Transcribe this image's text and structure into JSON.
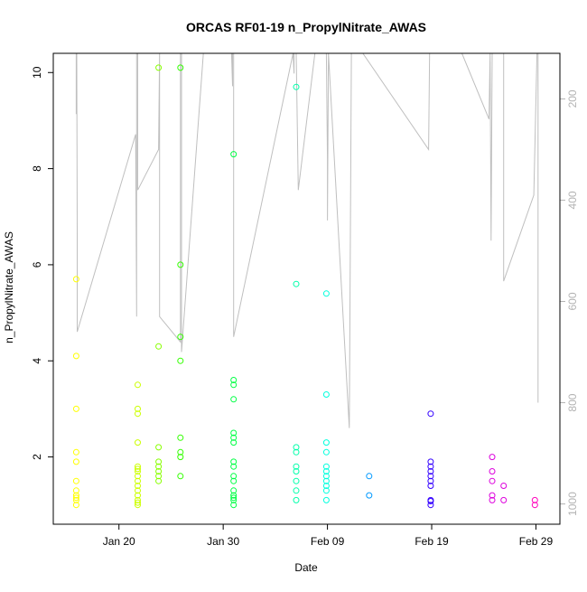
{
  "chart_data": {
    "type": "scatter",
    "title": "ORCAS RF01-19 n_PropylNitrate_AWAS",
    "xlabel": "Date",
    "ylabel": "n_PropylNitrate_AWAS",
    "ylim": [
      0.6,
      10.4
    ],
    "xlim_day": [
      13.7,
      62.3
    ],
    "y_ticks": [
      2,
      4,
      6,
      8,
      10
    ],
    "x_ticks": [
      {
        "day": 20,
        "label": "Jan 20"
      },
      {
        "day": 30,
        "label": "Jan 30"
      },
      {
        "day": 40,
        "label": "Feb 09"
      },
      {
        "day": 50,
        "label": "Feb 19"
      },
      {
        "day": 60,
        "label": "Feb 29"
      }
    ],
    "right_axis": {
      "range": [
        1040,
        110
      ],
      "ticks": [
        200,
        400,
        600,
        800,
        1000
      ],
      "color": "#b3b3b3"
    },
    "grid": false,
    "series": [
      {
        "color": "#ffff00",
        "points": [
          [
            15.9,
            5.7
          ],
          [
            15.9,
            4.1
          ],
          [
            15.9,
            3.0
          ],
          [
            15.9,
            2.1
          ],
          [
            15.9,
            1.9
          ],
          [
            15.9,
            1.5
          ],
          [
            15.9,
            1.3
          ],
          [
            15.9,
            1.2
          ],
          [
            15.9,
            1.15
          ],
          [
            15.9,
            1.1
          ],
          [
            15.9,
            1.0
          ]
        ]
      },
      {
        "color": "#ccff00",
        "points": [
          [
            21.8,
            3.5
          ],
          [
            21.8,
            3.0
          ],
          [
            21.8,
            2.9
          ],
          [
            21.8,
            2.3
          ],
          [
            21.8,
            1.8
          ],
          [
            21.8,
            1.75
          ],
          [
            21.8,
            1.7
          ],
          [
            21.8,
            1.6
          ],
          [
            21.8,
            1.5
          ],
          [
            21.8,
            1.4
          ],
          [
            21.8,
            1.3
          ],
          [
            21.8,
            1.2
          ],
          [
            21.8,
            1.1
          ],
          [
            21.8,
            1.05
          ],
          [
            21.8,
            1.0
          ]
        ]
      },
      {
        "color": "#88ff00",
        "points": [
          [
            23.8,
            10.1
          ],
          [
            23.8,
            4.3
          ],
          [
            23.8,
            2.2
          ],
          [
            23.8,
            1.9
          ],
          [
            23.8,
            1.8
          ],
          [
            23.8,
            1.7
          ],
          [
            23.8,
            1.6
          ],
          [
            23.8,
            1.5
          ]
        ]
      },
      {
        "color": "#33ff00",
        "points": [
          [
            25.9,
            10.1
          ],
          [
            25.9,
            6.0
          ],
          [
            25.9,
            4.5
          ],
          [
            25.9,
            4.0
          ],
          [
            25.9,
            2.4
          ],
          [
            25.9,
            2.1
          ],
          [
            25.9,
            2.0
          ],
          [
            25.9,
            1.6
          ]
        ]
      },
      {
        "color": "#00ff44",
        "points": [
          [
            31.0,
            8.3
          ],
          [
            31.0,
            3.6
          ],
          [
            31.0,
            3.5
          ],
          [
            31.0,
            3.2
          ],
          [
            31.0,
            2.5
          ],
          [
            31.0,
            2.4
          ],
          [
            31.0,
            2.3
          ],
          [
            31.0,
            1.9
          ],
          [
            31.0,
            1.8
          ],
          [
            31.0,
            1.6
          ],
          [
            31.0,
            1.5
          ],
          [
            31.0,
            1.3
          ],
          [
            31.0,
            1.2
          ],
          [
            31.0,
            1.15
          ],
          [
            31.0,
            1.1
          ],
          [
            31.0,
            1.0
          ]
        ]
      },
      {
        "color": "#00ffaa",
        "points": [
          [
            37.0,
            9.7
          ],
          [
            37.0,
            5.6
          ],
          [
            37.0,
            2.2
          ],
          [
            37.0,
            2.1
          ],
          [
            37.0,
            1.8
          ],
          [
            37.0,
            1.7
          ],
          [
            37.0,
            1.5
          ],
          [
            37.0,
            1.3
          ],
          [
            37.0,
            1.1
          ]
        ]
      },
      {
        "color": "#00ffdd",
        "points": [
          [
            39.9,
            5.4
          ],
          [
            39.9,
            3.3
          ],
          [
            39.9,
            2.3
          ],
          [
            39.9,
            2.1
          ],
          [
            39.9,
            1.8
          ],
          [
            39.9,
            1.7
          ],
          [
            39.9,
            1.6
          ],
          [
            39.9,
            1.5
          ],
          [
            39.9,
            1.4
          ],
          [
            39.9,
            1.3
          ],
          [
            39.9,
            1.1
          ]
        ]
      },
      {
        "color": "#0099ff",
        "points": [
          [
            44.0,
            1.6
          ],
          [
            44.0,
            1.2
          ]
        ]
      },
      {
        "color": "#3300ff",
        "points": [
          [
            49.9,
            2.9
          ],
          [
            49.9,
            1.9
          ],
          [
            49.9,
            1.8
          ],
          [
            49.9,
            1.7
          ],
          [
            49.9,
            1.6
          ],
          [
            49.9,
            1.5
          ],
          [
            49.9,
            1.4
          ],
          [
            49.9,
            1.1
          ],
          [
            49.9,
            1.08
          ],
          [
            49.9,
            1.0
          ]
        ]
      },
      {
        "color": "#dd00dd",
        "points": [
          [
            55.8,
            2.0
          ],
          [
            55.8,
            1.7
          ],
          [
            55.8,
            1.5
          ],
          [
            55.8,
            1.2
          ],
          [
            55.8,
            1.1
          ],
          [
            56.9,
            1.4
          ],
          [
            56.9,
            1.1
          ]
        ]
      },
      {
        "color": "#ff00bb",
        "points": [
          [
            59.9,
            1.1
          ],
          [
            59.9,
            1.0
          ]
        ]
      }
    ],
    "pressure_trace": {
      "color": "#bfbfbf",
      "points": [
        [
          15.9,
          110
        ],
        [
          15.9,
          230
        ],
        [
          15.95,
          110
        ],
        [
          16.0,
          470
        ],
        [
          16.0,
          660
        ],
        [
          21.6,
          270
        ],
        [
          21.7,
          630
        ],
        [
          21.7,
          110
        ],
        [
          21.8,
          110
        ],
        [
          21.8,
          380
        ],
        [
          23.8,
          300
        ],
        [
          23.9,
          110
        ],
        [
          23.9,
          630
        ],
        [
          25.9,
          680
        ],
        [
          25.9,
          110
        ],
        [
          26.0,
          110
        ],
        [
          26.0,
          700
        ],
        [
          28.1,
          110
        ],
        [
          30.8,
          110
        ],
        [
          30.9,
          175
        ],
        [
          30.9,
          110
        ],
        [
          31.0,
          110
        ],
        [
          31.0,
          670
        ],
        [
          36.7,
          110
        ],
        [
          36.8,
          150
        ],
        [
          36.8,
          110
        ],
        [
          37.0,
          110
        ],
        [
          37.2,
          380
        ],
        [
          38.8,
          110
        ],
        [
          39.8,
          110
        ],
        [
          39.9,
          100
        ],
        [
          40.0,
          320
        ],
        [
          40.0,
          440
        ],
        [
          40.1,
          110
        ],
        [
          42.1,
          850
        ],
        [
          42.3,
          110
        ],
        [
          43.4,
          110
        ],
        [
          49.7,
          300
        ],
        [
          49.8,
          110
        ],
        [
          50.0,
          110
        ],
        [
          52.9,
          110
        ],
        [
          55.5,
          240
        ],
        [
          55.6,
          110
        ],
        [
          55.7,
          480
        ],
        [
          55.8,
          110
        ],
        [
          56.9,
          110
        ],
        [
          56.9,
          560
        ],
        [
          59.8,
          390
        ],
        [
          60.1,
          110
        ],
        [
          60.2,
          110
        ],
        [
          60.2,
          800
        ]
      ]
    }
  }
}
